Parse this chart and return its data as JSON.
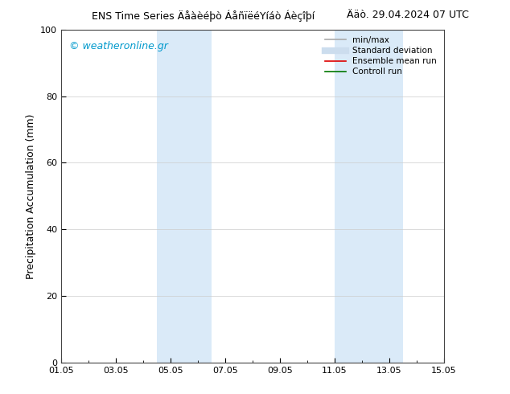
{
  "title_left": "ENS Time Series Äåàèéþò ÁåñïëéYíáò Áèçîþí",
  "title_right": "Ääò. 29.04.2024 07 UTC",
  "watermark": "© weatheronline.gr",
  "ylabel": "Precipitation Accumulation (mm)",
  "ylim": [
    0,
    100
  ],
  "yticks": [
    0,
    20,
    40,
    60,
    80,
    100
  ],
  "xlim": [
    0,
    14
  ],
  "xtick_labels": [
    "01.05",
    "03.05",
    "05.05",
    "07.05",
    "09.05",
    "11.05",
    "13.05",
    "15.05"
  ],
  "xtick_positions": [
    0,
    2,
    4,
    6,
    8,
    10,
    12,
    14
  ],
  "shade_bands": [
    {
      "start": 3.5,
      "end": 5.5
    },
    {
      "start": 10.0,
      "end": 12.5
    }
  ],
  "shade_color": "#daeaf8",
  "bg_color": "#ffffff",
  "watermark_color": "#0099cc",
  "title_fontsize": 9,
  "tick_fontsize": 8,
  "ylabel_fontsize": 9,
  "watermark_fontsize": 9,
  "legend_items": [
    {
      "label": "min/max",
      "color": "#aaaaaa",
      "lw": 1.2,
      "type": "line"
    },
    {
      "label": "Standard deviation",
      "color": "#ccddee",
      "lw": 6,
      "type": "line"
    },
    {
      "label": "Ensemble mean run",
      "color": "#dd0000",
      "lw": 1.2,
      "type": "line"
    },
    {
      "label": "Controll run",
      "color": "#007700",
      "lw": 1.2,
      "type": "line"
    }
  ]
}
